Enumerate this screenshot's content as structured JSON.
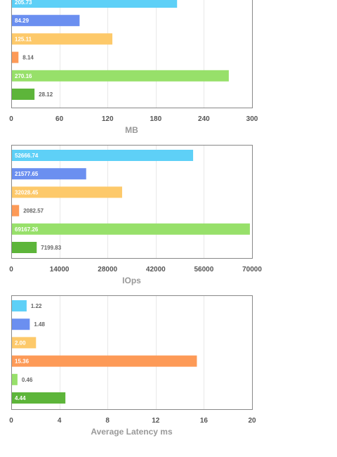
{
  "chart_data": [
    {
      "type": "bar",
      "orientation": "horizontal",
      "xlabel": "MB",
      "xlim": [
        0,
        300
      ],
      "ticks": [
        0,
        60,
        120,
        180,
        240,
        300
      ],
      "values": [
        205.73,
        84.29,
        125.11,
        8.14,
        270.16,
        28.12
      ],
      "labels": [
        "205.73",
        "84.29",
        "125.11",
        "8.14",
        "270.16",
        "28.12"
      ],
      "colors": [
        "#5ed0f7",
        "#6b8ff0",
        "#fdc96a",
        "#fd9a57",
        "#97e06a",
        "#5db53a"
      ]
    },
    {
      "type": "bar",
      "orientation": "horizontal",
      "xlabel": "IOps",
      "xlim": [
        0,
        70000
      ],
      "ticks": [
        0,
        14000,
        28000,
        42000,
        56000,
        70000
      ],
      "values": [
        52666.74,
        21577.65,
        32028.45,
        2082.57,
        69167.26,
        7199.83
      ],
      "labels": [
        "52666.74",
        "21577.65",
        "32028.45",
        "2082.57",
        "69167.26",
        "7199.83"
      ],
      "colors": [
        "#5ed0f7",
        "#6b8ff0",
        "#fdc96a",
        "#fd9a57",
        "#97e06a",
        "#5db53a"
      ]
    },
    {
      "type": "bar",
      "orientation": "horizontal",
      "xlabel": "Average Latency ms",
      "xlim": [
        0,
        20
      ],
      "ticks": [
        0,
        4,
        8,
        12,
        16,
        20
      ],
      "values": [
        1.22,
        1.48,
        2.0,
        15.36,
        0.46,
        4.44
      ],
      "labels": [
        "1.22",
        "1.48",
        "2.00",
        "15.36",
        "0.46",
        "4.44"
      ],
      "colors": [
        "#5ed0f7",
        "#6b8ff0",
        "#fdc96a",
        "#fd9a57",
        "#97e06a",
        "#5db53a"
      ]
    }
  ]
}
